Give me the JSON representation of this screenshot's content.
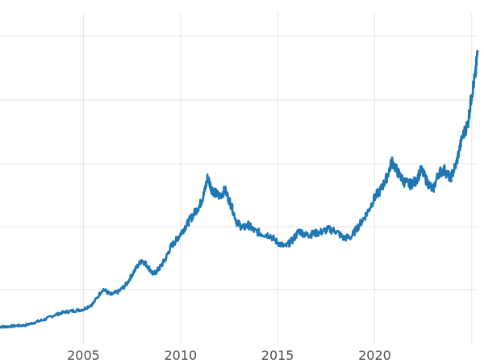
{
  "chart_data": {
    "type": "line",
    "title": "",
    "xlabel": "",
    "ylabel": "",
    "x_ticks": [
      2005,
      2010,
      2015,
      2020
    ],
    "x_range": [
      2000.7,
      2025.3
    ],
    "y_range": [
      0,
      1
    ],
    "y_tick_labels_shown": false,
    "grid": true,
    "legend": "none",
    "series": [
      {
        "color": "#1f77b4",
        "x": [
          2000.7,
          2001.0,
          2001.5,
          2002.0,
          2002.5,
          2003.0,
          2003.5,
          2004.0,
          2004.5,
          2005.0,
          2005.5,
          2006.0,
          2006.4,
          2006.8,
          2007.2,
          2007.6,
          2008.0,
          2008.3,
          2008.6,
          2008.9,
          2009.2,
          2009.5,
          2009.8,
          2010.1,
          2010.4,
          2010.7,
          2011.0,
          2011.2,
          2011.4,
          2011.6,
          2011.8,
          2012.0,
          2012.3,
          2012.6,
          2012.9,
          2013.2,
          2013.5,
          2013.8,
          2014.2,
          2014.6,
          2015.0,
          2015.4,
          2015.8,
          2016.1,
          2016.5,
          2016.8,
          2017.2,
          2017.6,
          2018.0,
          2018.4,
          2018.8,
          2019.2,
          2019.6,
          2020.0,
          2020.3,
          2020.6,
          2020.9,
          2021.2,
          2021.5,
          2021.8,
          2022.1,
          2022.4,
          2022.7,
          2023.0,
          2023.3,
          2023.6,
          2023.9,
          2024.2,
          2024.5,
          2024.8,
          2025.0,
          2025.2,
          2025.3
        ],
        "y": [
          0.0,
          0.0,
          0.003,
          0.005,
          0.015,
          0.025,
          0.04,
          0.05,
          0.055,
          0.06,
          0.08,
          0.13,
          0.11,
          0.12,
          0.145,
          0.19,
          0.23,
          0.21,
          0.18,
          0.2,
          0.23,
          0.275,
          0.3,
          0.33,
          0.36,
          0.39,
          0.42,
          0.455,
          0.515,
          0.475,
          0.46,
          0.45,
          0.47,
          0.42,
          0.36,
          0.34,
          0.35,
          0.33,
          0.32,
          0.315,
          0.29,
          0.275,
          0.3,
          0.33,
          0.315,
          0.32,
          0.325,
          0.335,
          0.33,
          0.305,
          0.31,
          0.35,
          0.39,
          0.445,
          0.47,
          0.51,
          0.57,
          0.53,
          0.5,
          0.49,
          0.5,
          0.54,
          0.5,
          0.47,
          0.53,
          0.54,
          0.51,
          0.56,
          0.65,
          0.7,
          0.8,
          0.87,
          0.95
        ]
      }
    ]
  }
}
